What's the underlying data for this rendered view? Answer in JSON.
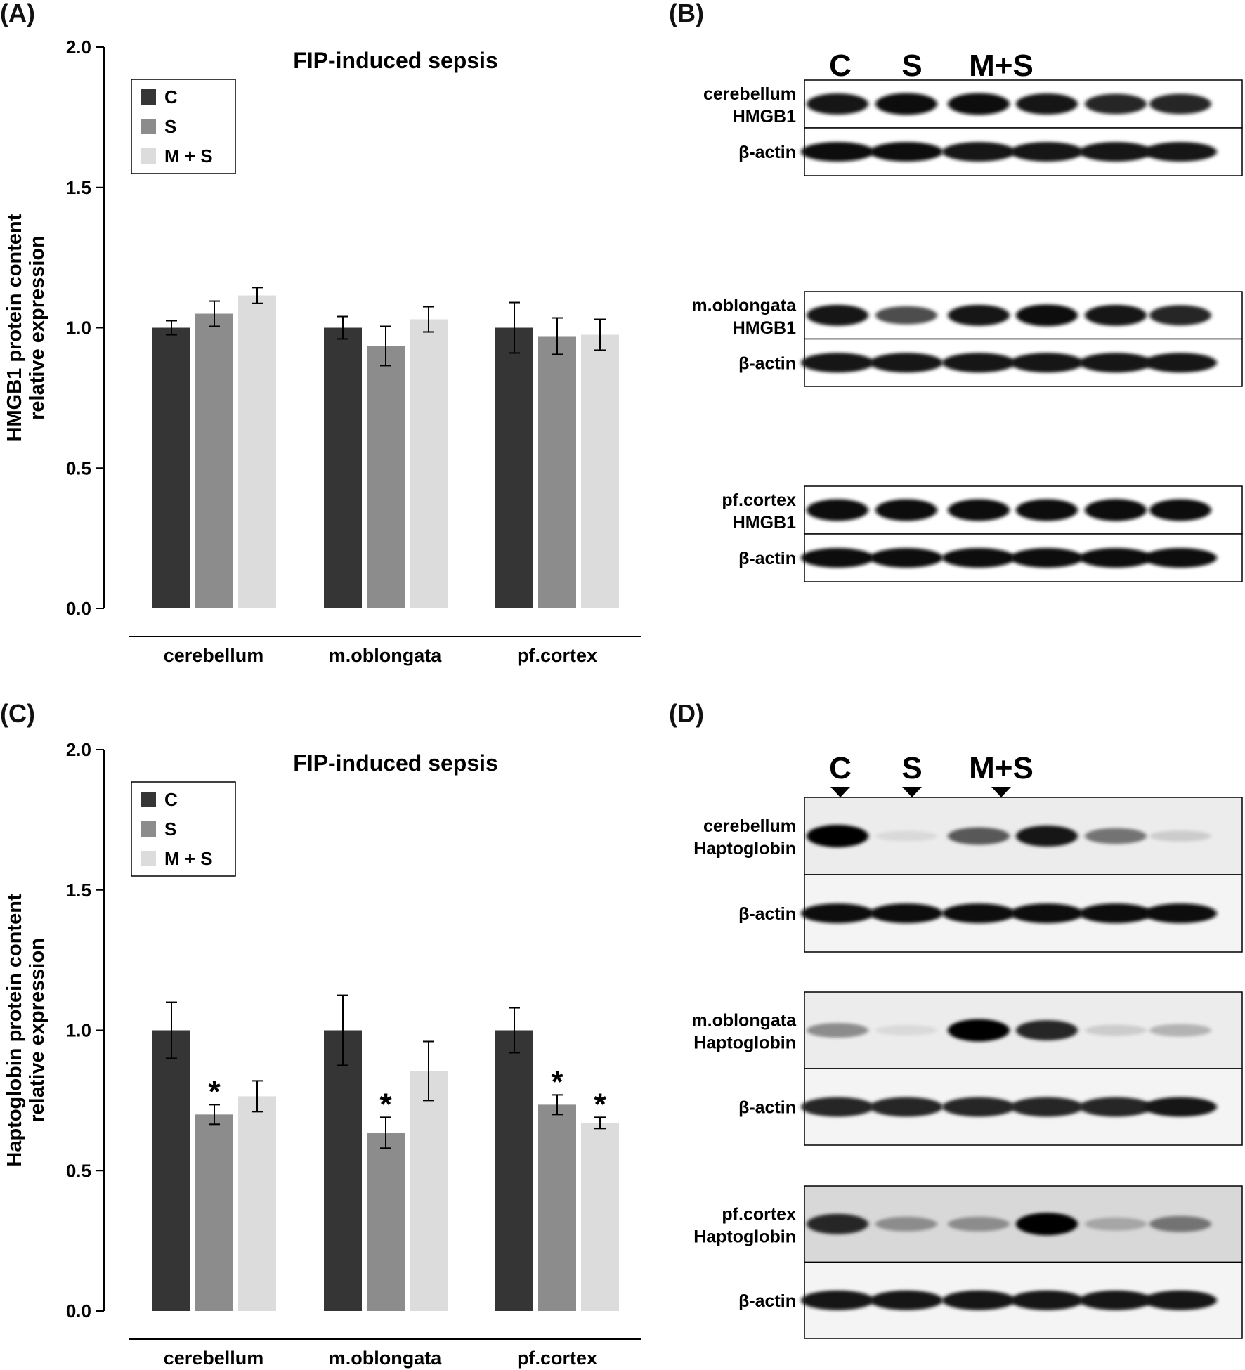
{
  "panels": {
    "A": "(A)",
    "B": "(B)",
    "C": "(C)",
    "D": "(D)"
  },
  "colors": {
    "C": "#353535",
    "S": "#8c8c8c",
    "M + S": "#dcdcdc"
  },
  "chart_data": [
    {
      "type": "bar",
      "title": "FIP-induced sepsis",
      "ylabel_line1": "HMGB1 protein content",
      "ylabel_line2": "relative expression",
      "xlabel": "",
      "categories": [
        "cerebellum",
        "m.oblongata",
        "pf.cortex"
      ],
      "ylim": [
        0,
        2.0
      ],
      "yticks": [
        "0.0",
        "0.5",
        "1.0",
        "1.5",
        "2.0"
      ],
      "legend": [
        "C",
        "S",
        "M + S"
      ],
      "legend_position": "top-left",
      "series": [
        {
          "name": "C",
          "values": [
            1.0,
            1.0,
            1.0
          ],
          "errors": [
            0.025,
            0.04,
            0.09
          ]
        },
        {
          "name": "S",
          "values": [
            1.05,
            0.935,
            0.97
          ],
          "errors": [
            0.045,
            0.07,
            0.065
          ]
        },
        {
          "name": "M + S",
          "values": [
            1.115,
            1.03,
            0.975
          ],
          "errors": [
            0.028,
            0.045,
            0.055
          ]
        }
      ],
      "significance": []
    },
    {
      "type": "bar",
      "title": "FIP-induced sepsis",
      "ylabel_line1": "Haptoglobin protein content",
      "ylabel_line2": "relative expression",
      "xlabel": "",
      "categories": [
        "cerebellum",
        "m.oblongata",
        "pf.cortex"
      ],
      "ylim": [
        0,
        2.0
      ],
      "yticks": [
        "0.0",
        "0.5",
        "1.0",
        "1.5",
        "2.0"
      ],
      "legend": [
        "C",
        "S",
        "M + S"
      ],
      "legend_position": "top-left",
      "series": [
        {
          "name": "C",
          "values": [
            1.0,
            1.0,
            1.0
          ],
          "errors": [
            0.1,
            0.125,
            0.08
          ]
        },
        {
          "name": "S",
          "values": [
            0.7,
            0.635,
            0.735
          ],
          "errors": [
            0.035,
            0.055,
            0.035
          ]
        },
        {
          "name": "M + S",
          "values": [
            0.765,
            0.855,
            0.67
          ],
          "errors": [
            0.055,
            0.105,
            0.02
          ]
        }
      ],
      "significance": [
        {
          "category": 0,
          "series": 1,
          "label": "*"
        },
        {
          "category": 1,
          "series": 1,
          "label": "*"
        },
        {
          "category": 2,
          "series": 1,
          "label": "*"
        },
        {
          "category": 2,
          "series": 2,
          "label": "*"
        }
      ]
    }
  ],
  "blots": [
    {
      "headers": [
        "C",
        "S",
        "M+S"
      ],
      "groups": [
        {
          "label1": "cerebellum",
          "label2": "HMGB1",
          "actin": "β-actin",
          "target_intensity": [
            0.9,
            0.95,
            0.95,
            0.9,
            0.85,
            0.85
          ],
          "actin_intensity": [
            0.95,
            0.95,
            0.9,
            0.9,
            0.9,
            0.9
          ]
        },
        {
          "label1": "m.oblongata",
          "label2": "HMGB1",
          "actin": "β-actin",
          "target_intensity": [
            0.9,
            0.7,
            0.9,
            0.95,
            0.9,
            0.85
          ],
          "actin_intensity": [
            0.9,
            0.9,
            0.9,
            0.9,
            0.9,
            0.9
          ]
        },
        {
          "label1": "pf.cortex",
          "label2": "HMGB1",
          "actin": "β-actin",
          "target_intensity": [
            0.95,
            0.95,
            0.95,
            0.95,
            0.97,
            0.95
          ],
          "actin_intensity": [
            0.95,
            0.95,
            0.95,
            0.95,
            0.95,
            0.97
          ]
        }
      ]
    },
    {
      "headers": [
        "C",
        "S",
        "M+S"
      ],
      "groups": [
        {
          "label1": "cerebellum",
          "label2": "Haptoglobin",
          "actin": "β-actin",
          "target_intensity": [
            1.0,
            0.15,
            0.65,
            0.9,
            0.55,
            0.2
          ],
          "actin_intensity": [
            0.95,
            0.95,
            0.95,
            0.95,
            0.97,
            0.97
          ]
        },
        {
          "label1": "m.oblongata",
          "label2": "Haptoglobin",
          "actin": "β-actin",
          "target_intensity": [
            0.45,
            0.15,
            1.0,
            0.85,
            0.2,
            0.3
          ],
          "actin_intensity": [
            0.85,
            0.85,
            0.85,
            0.85,
            0.85,
            0.9
          ]
        },
        {
          "label1": "pf.cortex",
          "label2": "Haptoglobin",
          "actin": "β-actin",
          "target_intensity": [
            0.85,
            0.45,
            0.45,
            1.0,
            0.35,
            0.55
          ],
          "actin_intensity": [
            0.9,
            0.9,
            0.9,
            0.9,
            0.9,
            0.9
          ]
        }
      ]
    }
  ]
}
